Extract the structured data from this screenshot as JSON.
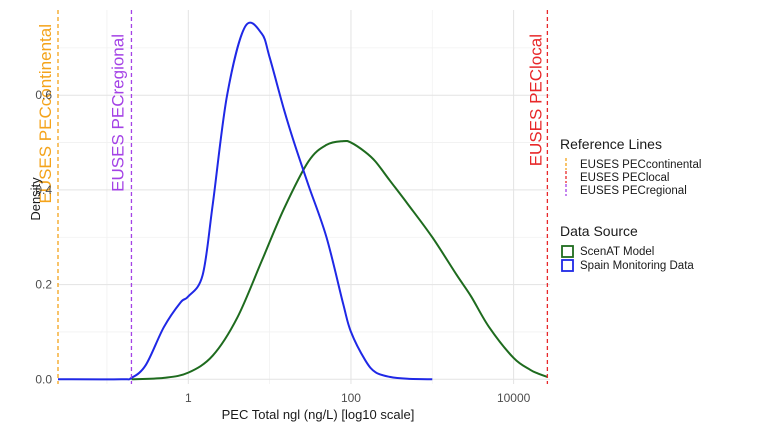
{
  "chart_data": {
    "type": "line",
    "xlabel": "PEC Total ngl (ng/L) [log10 scale]",
    "ylabel": "Density",
    "x_scale": "log10",
    "xlim": [
      0.025,
      28000
    ],
    "ylim": [
      -0.01,
      0.78
    ],
    "x_ticks": [
      {
        "value": 1,
        "label": "1"
      },
      {
        "value": 100,
        "label": "100"
      },
      {
        "value": 10000,
        "label": "10000"
      }
    ],
    "y_ticks": [
      {
        "value": 0.0,
        "label": "0.0"
      },
      {
        "value": 0.2,
        "label": "0.2"
      },
      {
        "value": 0.4,
        "label": "0.4"
      },
      {
        "value": 0.6,
        "label": "0.6"
      }
    ],
    "grid": true,
    "reference_lines": [
      {
        "name": "EUSES PECcontinental",
        "label": "EUSES PECcontinental",
        "x": 0.025,
        "color": "#f4a31a"
      },
      {
        "name": "EUSES PEClocal",
        "label": "EUSES PEClocal",
        "x": 26000,
        "color": "#e8282a"
      },
      {
        "name": "EUSES PECregional",
        "label": "EUSES PECregional",
        "x": 0.2,
        "color": "#a442e6"
      }
    ],
    "series": [
      {
        "name": "ScenAT Model",
        "color": "#1e6b1e",
        "x": [
          0.2,
          0.5,
          1,
          2,
          4,
          8,
          15,
          30,
          50,
          80,
          100,
          150,
          200,
          300,
          500,
          1000,
          2000,
          3000,
          5000,
          10000,
          16000,
          20000,
          26000
        ],
        "y": [
          0.0,
          0.003,
          0.014,
          0.05,
          0.13,
          0.25,
          0.36,
          0.46,
          0.495,
          0.503,
          0.5,
          0.48,
          0.46,
          0.42,
          0.37,
          0.3,
          0.22,
          0.175,
          0.11,
          0.045,
          0.02,
          0.012,
          0.005
        ]
      },
      {
        "name": "Spain Monitoring Data",
        "color": "#1f28e6",
        "x": [
          0.025,
          0.15,
          0.2,
          0.3,
          0.5,
          0.8,
          1,
          1.5,
          2,
          3,
          5,
          8,
          10,
          15,
          20,
          30,
          50,
          80,
          100,
          150,
          200,
          300,
          500,
          1000
        ],
        "y": [
          0.0,
          0.0,
          0.003,
          0.03,
          0.11,
          0.162,
          0.175,
          0.22,
          0.37,
          0.6,
          0.745,
          0.73,
          0.68,
          0.57,
          0.5,
          0.41,
          0.3,
          0.16,
          0.1,
          0.04,
          0.015,
          0.005,
          0.001,
          0.0
        ]
      }
    ],
    "legends": [
      {
        "title": "Reference Lines",
        "items": [
          {
            "label": "EUSES PECcontinental",
            "color": "#f4a31a",
            "style": "dashed-vertical"
          },
          {
            "label": "EUSES PEClocal",
            "color": "#e8282a",
            "style": "dashed-vertical"
          },
          {
            "label": "EUSES PECregional",
            "color": "#a442e6",
            "style": "dashed-vertical"
          }
        ]
      },
      {
        "title": "Data Source",
        "items": [
          {
            "label": "ScenAT Model",
            "color": "#1e6b1e",
            "style": "box"
          },
          {
            "label": "Spain Monitoring Data",
            "color": "#1f28e6",
            "style": "box"
          }
        ]
      }
    ],
    "legend_position": "right"
  }
}
